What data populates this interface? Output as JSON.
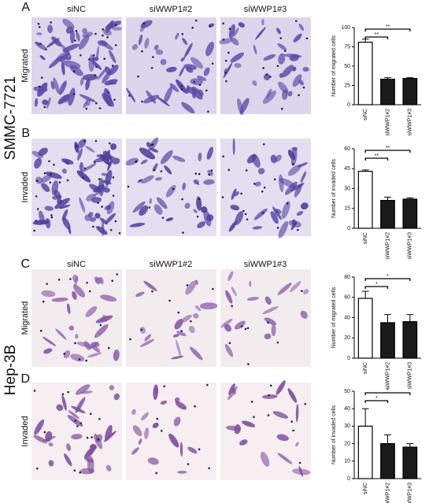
{
  "cell_lines": [
    "SMMC-7721",
    "Hep-3B"
  ],
  "panel_labels": [
    "A",
    "B",
    "C",
    "D"
  ],
  "column_headers": [
    [
      "siNC",
      "siWWP1#2",
      "siWWP1#3"
    ],
    [
      "siNC",
      "siWWP1#2",
      "siWWP1#3"
    ]
  ],
  "row_labels": [
    "Migrated",
    "Invaded",
    "Migrated",
    "Invaded"
  ],
  "chart_data": [
    {
      "type": "bar",
      "y_label": "Number of migrated cells",
      "categories": [
        "siNC",
        "siWWP1#2",
        "siWWP1#3"
      ],
      "values": [
        81,
        33,
        34
      ],
      "errors": [
        4,
        2,
        1
      ],
      "colors": [
        "#ffffff",
        "#1a1a1a",
        "#1a1a1a"
      ],
      "ylim": [
        0,
        100
      ],
      "yticks": [
        0,
        25,
        50,
        75,
        100
      ],
      "annotations": [
        "**",
        "**"
      ]
    },
    {
      "type": "bar",
      "y_label": "Number of invaded cells",
      "categories": [
        "siNC",
        "siWWP1#2",
        "siWWP1#3"
      ],
      "values": [
        43,
        21,
        22
      ],
      "errors": [
        1,
        2.5,
        1
      ],
      "colors": [
        "#ffffff",
        "#1a1a1a",
        "#1a1a1a"
      ],
      "ylim": [
        0,
        60
      ],
      "yticks": [
        0,
        15,
        30,
        45,
        60
      ],
      "annotations": [
        "**",
        "**"
      ]
    },
    {
      "type": "bar",
      "y_label": "Number of migrated cells",
      "categories": [
        "siNC",
        "siWWP1#2",
        "siWWP1#3"
      ],
      "values": [
        59,
        35,
        36
      ],
      "errors": [
        7,
        8,
        7
      ],
      "colors": [
        "#ffffff",
        "#1a1a1a",
        "#1a1a1a"
      ],
      "ylim": [
        0,
        80
      ],
      "yticks": [
        0,
        20,
        40,
        60,
        80
      ],
      "annotations": [
        "*",
        "*"
      ]
    },
    {
      "type": "bar",
      "y_label": "Number of invaded cells",
      "categories": [
        "siNC",
        "siWWP1#2",
        "siWWP1#3"
      ],
      "values": [
        30,
        20,
        18
      ],
      "errors": [
        10,
        5,
        2
      ],
      "colors": [
        "#ffffff",
        "#1a1a1a",
        "#1a1a1a"
      ],
      "ylim": [
        0,
        50
      ],
      "yticks": [
        0,
        10,
        20,
        30,
        40,
        50
      ],
      "annotations": [
        "*",
        "*"
      ]
    }
  ]
}
